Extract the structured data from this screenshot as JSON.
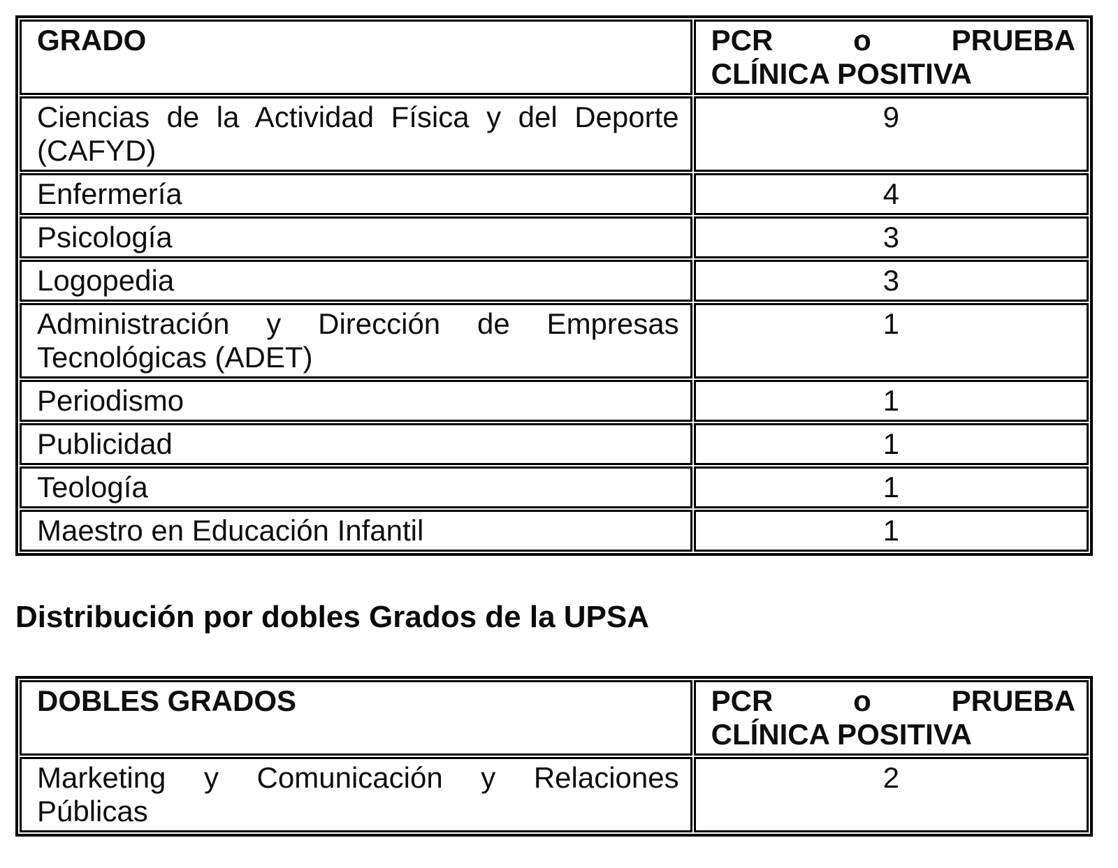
{
  "page": {
    "heading_dobles": "Distribución por dobles Grados de la UPSA"
  },
  "grados_table": {
    "header": {
      "col1": "GRADO",
      "col2_line1": "PCR o PRUEBA",
      "col2_line2": "CLÍNICA POSITIVA"
    },
    "rows": [
      {
        "name_line1": "Ciencias de la Actividad Física y del Deporte",
        "name_line2": "(CAFYD)",
        "value": "9"
      },
      {
        "name_line1": "Enfermería",
        "value": "4"
      },
      {
        "name_line1": "Psicología",
        "value": "3"
      },
      {
        "name_line1": "Logopedia",
        "value": "3"
      },
      {
        "name_line1": "Administración y Dirección de Empresas",
        "name_line2": "Tecnológicas (ADET)",
        "value": "1"
      },
      {
        "name_line1": "Periodismo",
        "value": "1"
      },
      {
        "name_line1": "Publicidad",
        "value": "1"
      },
      {
        "name_line1": "Teología",
        "value": "1"
      },
      {
        "name_line1": "Maestro en Educación Infantil",
        "value": "1"
      }
    ]
  },
  "dobles_table": {
    "header": {
      "col1": "DOBLES GRADOS",
      "col2_line1": "PCR o PRUEBA",
      "col2_line2": "CLÍNICA POSITIVA"
    },
    "rows": [
      {
        "name_line1": "Marketing y Comunicación y Relaciones",
        "name_line2": "Públicas",
        "value": "2"
      }
    ]
  }
}
